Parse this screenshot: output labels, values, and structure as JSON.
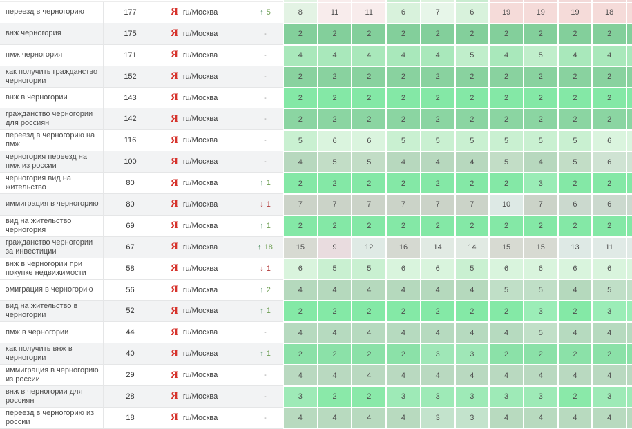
{
  "glyphs": {
    "up": "↑",
    "down": "↓",
    "none": "-"
  },
  "colors": {
    "yandex_red": "#d6322b",
    "change_up_arrow": "#2e7b47",
    "change_up_value": "#6f9f53",
    "change_down": "#b23b3b",
    "dash_gray": "#999999",
    "zebra_row": "#f2f3f4"
  },
  "table": {
    "engine": {
      "icon": "Я",
      "label": "ru/Москва"
    },
    "clipped_row": {
      "colors": [
        "#e3f3e4",
        "#f8ecec",
        "#f8ecec",
        "#c9ecd0",
        "#ddf2de",
        "#c9ecd0",
        "#f2d9d8",
        "#f2d9d8",
        "#f2d9d8",
        "#f2d9d8"
      ]
    },
    "rows": [
      {
        "keyword": "переезд в черногорию",
        "volume": "177",
        "zebra": false,
        "change": {
          "dir": "up",
          "value": "5"
        },
        "positions": [
          {
            "v": "8",
            "c": "#e3f3e4"
          },
          {
            "v": "11",
            "c": "#f8ecec"
          },
          {
            "v": "11",
            "c": "#f8ecec"
          },
          {
            "v": "6",
            "c": "#d8f2dc"
          },
          {
            "v": "7",
            "c": "#e7f6e9"
          },
          {
            "v": "6",
            "c": "#d8f2dc"
          },
          {
            "v": "19",
            "c": "#f5dbd9"
          },
          {
            "v": "19",
            "c": "#f5dbd9"
          },
          {
            "v": "19",
            "c": "#f5dbd9"
          },
          {
            "v": "18",
            "c": "#f5dbd9"
          }
        ]
      },
      {
        "keyword": "внж черногория",
        "volume": "175",
        "zebra": true,
        "change": {
          "dir": "none",
          "value": ""
        },
        "positions": [
          {
            "v": "2",
            "c": "#83cf9b"
          },
          {
            "v": "2",
            "c": "#83cf9b"
          },
          {
            "v": "2",
            "c": "#83cf9b"
          },
          {
            "v": "2",
            "c": "#83cf9b"
          },
          {
            "v": "2",
            "c": "#83cf9b"
          },
          {
            "v": "2",
            "c": "#83cf9b"
          },
          {
            "v": "2",
            "c": "#83cf9b"
          },
          {
            "v": "2",
            "c": "#83cf9b"
          },
          {
            "v": "2",
            "c": "#83cf9b"
          },
          {
            "v": "2",
            "c": "#83cf9b"
          }
        ]
      },
      {
        "keyword": "пмж черногория",
        "volume": "171",
        "zebra": false,
        "change": {
          "dir": "none",
          "value": ""
        },
        "positions": [
          {
            "v": "4",
            "c": "#a9e8bb"
          },
          {
            "v": "4",
            "c": "#a9e8bb"
          },
          {
            "v": "4",
            "c": "#a9e8bb"
          },
          {
            "v": "4",
            "c": "#a9e8bb"
          },
          {
            "v": "4",
            "c": "#a9e8bb"
          },
          {
            "v": "5",
            "c": "#c0eecb"
          },
          {
            "v": "4",
            "c": "#a9e8bb"
          },
          {
            "v": "5",
            "c": "#c0eecb"
          },
          {
            "v": "4",
            "c": "#a9e8bb"
          },
          {
            "v": "4",
            "c": "#a9e8bb"
          }
        ]
      },
      {
        "keyword": "как получить гражданство черногории",
        "volume": "152",
        "zebra": true,
        "change": {
          "dir": "none",
          "value": ""
        },
        "positions": [
          {
            "v": "2",
            "c": "#89d29f"
          },
          {
            "v": "2",
            "c": "#89d29f"
          },
          {
            "v": "2",
            "c": "#89d29f"
          },
          {
            "v": "2",
            "c": "#89d29f"
          },
          {
            "v": "2",
            "c": "#89d29f"
          },
          {
            "v": "2",
            "c": "#89d29f"
          },
          {
            "v": "2",
            "c": "#89d29f"
          },
          {
            "v": "2",
            "c": "#89d29f"
          },
          {
            "v": "2",
            "c": "#89d29f"
          },
          {
            "v": "2",
            "c": "#89d29f"
          }
        ]
      },
      {
        "keyword": "внж в черногории",
        "volume": "143",
        "zebra": false,
        "change": {
          "dir": "none",
          "value": ""
        },
        "positions": [
          {
            "v": "2",
            "c": "#84e8a6"
          },
          {
            "v": "2",
            "c": "#84e8a6"
          },
          {
            "v": "2",
            "c": "#84e8a6"
          },
          {
            "v": "2",
            "c": "#84e8a6"
          },
          {
            "v": "2",
            "c": "#84e8a6"
          },
          {
            "v": "2",
            "c": "#84e8a6"
          },
          {
            "v": "2",
            "c": "#84e8a6"
          },
          {
            "v": "2",
            "c": "#84e8a6"
          },
          {
            "v": "2",
            "c": "#84e8a6"
          },
          {
            "v": "2",
            "c": "#84e8a6"
          }
        ]
      },
      {
        "keyword": "гражданство черногории для россиян",
        "volume": "142",
        "zebra": true,
        "change": {
          "dir": "none",
          "value": ""
        },
        "positions": [
          {
            "v": "2",
            "c": "#8bd5a2"
          },
          {
            "v": "2",
            "c": "#8bd5a2"
          },
          {
            "v": "2",
            "c": "#8bd5a2"
          },
          {
            "v": "2",
            "c": "#8bd5a2"
          },
          {
            "v": "2",
            "c": "#8bd5a2"
          },
          {
            "v": "2",
            "c": "#8bd5a2"
          },
          {
            "v": "2",
            "c": "#8bd5a2"
          },
          {
            "v": "2",
            "c": "#8bd5a2"
          },
          {
            "v": "2",
            "c": "#8bd5a2"
          },
          {
            "v": "2",
            "c": "#8bd5a2"
          }
        ]
      },
      {
        "keyword": "переезд в черногорию на пмж",
        "volume": "116",
        "zebra": false,
        "change": {
          "dir": "none",
          "value": ""
        },
        "positions": [
          {
            "v": "5",
            "c": "#c9f0d1"
          },
          {
            "v": "6",
            "c": "#daf4de"
          },
          {
            "v": "6",
            "c": "#daf4de"
          },
          {
            "v": "5",
            "c": "#c9f0d1"
          },
          {
            "v": "5",
            "c": "#c9f0d1"
          },
          {
            "v": "5",
            "c": "#c9f0d1"
          },
          {
            "v": "5",
            "c": "#c9f0d1"
          },
          {
            "v": "5",
            "c": "#c9f0d1"
          },
          {
            "v": "5",
            "c": "#c9f0d1"
          },
          {
            "v": "6",
            "c": "#daf4de"
          }
        ]
      },
      {
        "keyword": "черногория переезд на пмж из россии",
        "volume": "100",
        "zebra": true,
        "change": {
          "dir": "none",
          "value": ""
        },
        "positions": [
          {
            "v": "4",
            "c": "#b7d8be"
          },
          {
            "v": "5",
            "c": "#c2ddc6"
          },
          {
            "v": "5",
            "c": "#c2ddc6"
          },
          {
            "v": "4",
            "c": "#b7d8be"
          },
          {
            "v": "4",
            "c": "#b7d8be"
          },
          {
            "v": "4",
            "c": "#b7d8be"
          },
          {
            "v": "5",
            "c": "#c2ddc6"
          },
          {
            "v": "4",
            "c": "#b7d8be"
          },
          {
            "v": "5",
            "c": "#c2ddc6"
          },
          {
            "v": "6",
            "c": "#cfe3d3"
          }
        ]
      },
      {
        "keyword": "черногория вид на жительство",
        "volume": "80",
        "zebra": false,
        "change": {
          "dir": "up",
          "value": "1"
        },
        "positions": [
          {
            "v": "2",
            "c": "#84e8a6"
          },
          {
            "v": "2",
            "c": "#84e8a6"
          },
          {
            "v": "2",
            "c": "#84e8a6"
          },
          {
            "v": "2",
            "c": "#84e8a6"
          },
          {
            "v": "2",
            "c": "#84e8a6"
          },
          {
            "v": "2",
            "c": "#84e8a6"
          },
          {
            "v": "2",
            "c": "#84e8a6"
          },
          {
            "v": "3",
            "c": "#9aecb6"
          },
          {
            "v": "2",
            "c": "#84e8a6"
          },
          {
            "v": "2",
            "c": "#84e8a6"
          }
        ]
      },
      {
        "keyword": "иммиграция в черногорию",
        "volume": "80",
        "zebra": true,
        "change": {
          "dir": "down",
          "value": "1"
        },
        "positions": [
          {
            "v": "7",
            "c": "#cbd3c8"
          },
          {
            "v": "7",
            "c": "#cbd3c8"
          },
          {
            "v": "7",
            "c": "#cbd3c8"
          },
          {
            "v": "7",
            "c": "#cbd3c8"
          },
          {
            "v": "7",
            "c": "#cbd3c8"
          },
          {
            "v": "7",
            "c": "#cbd3c8"
          },
          {
            "v": "10",
            "c": "#dde9e5"
          },
          {
            "v": "7",
            "c": "#cbd3c8"
          },
          {
            "v": "6",
            "c": "#cbd9ce"
          },
          {
            "v": "6",
            "c": "#cbd9ce"
          }
        ]
      },
      {
        "keyword": "вид на жительство черногория",
        "volume": "69",
        "zebra": false,
        "change": {
          "dir": "up",
          "value": "1"
        },
        "positions": [
          {
            "v": "2",
            "c": "#84e8a6"
          },
          {
            "v": "2",
            "c": "#84e8a6"
          },
          {
            "v": "2",
            "c": "#84e8a6"
          },
          {
            "v": "2",
            "c": "#84e8a6"
          },
          {
            "v": "2",
            "c": "#84e8a6"
          },
          {
            "v": "2",
            "c": "#84e8a6"
          },
          {
            "v": "2",
            "c": "#84e8a6"
          },
          {
            "v": "2",
            "c": "#84e8a6"
          },
          {
            "v": "2",
            "c": "#84e8a6"
          },
          {
            "v": "2",
            "c": "#84e8a6"
          }
        ]
      },
      {
        "keyword": "гражданство черногории за инвестиции",
        "volume": "67",
        "zebra": true,
        "change": {
          "dir": "up",
          "value": "18"
        },
        "positions": [
          {
            "v": "15",
            "c": "#d7dad2"
          },
          {
            "v": "9",
            "c": "#e9dcdf"
          },
          {
            "v": "12",
            "c": "#dfeae5"
          },
          {
            "v": "16",
            "c": "#d5d9d1"
          },
          {
            "v": "14",
            "c": "#e1eae3"
          },
          {
            "v": "14",
            "c": "#e1eae3"
          },
          {
            "v": "15",
            "c": "#d7dad2"
          },
          {
            "v": "15",
            "c": "#d7dad2"
          },
          {
            "v": "13",
            "c": "#dee9e5"
          },
          {
            "v": "11",
            "c": "#e0eae6"
          }
        ]
      },
      {
        "keyword": "внж в черногории при покупке недвижимости",
        "volume": "58",
        "zebra": false,
        "change": {
          "dir": "down",
          "value": "1"
        },
        "positions": [
          {
            "v": "6",
            "c": "#d9f4dd"
          },
          {
            "v": "5",
            "c": "#c9f0d1"
          },
          {
            "v": "5",
            "c": "#c9f0d1"
          },
          {
            "v": "6",
            "c": "#d9f4dd"
          },
          {
            "v": "6",
            "c": "#d9f4dd"
          },
          {
            "v": "5",
            "c": "#c9f0d1"
          },
          {
            "v": "6",
            "c": "#d9f4dd"
          },
          {
            "v": "6",
            "c": "#d9f4dd"
          },
          {
            "v": "6",
            "c": "#d9f4dd"
          },
          {
            "v": "6",
            "c": "#d9f4dd"
          }
        ]
      },
      {
        "keyword": "эмиграция в черногорию",
        "volume": "56",
        "zebra": false,
        "change": {
          "dir": "up",
          "value": "2"
        },
        "positions": [
          {
            "v": "4",
            "c": "#b5d9bd"
          },
          {
            "v": "4",
            "c": "#b5d9bd"
          },
          {
            "v": "4",
            "c": "#b5d9bd"
          },
          {
            "v": "4",
            "c": "#b5d9bd"
          },
          {
            "v": "4",
            "c": "#b5d9bd"
          },
          {
            "v": "4",
            "c": "#b5d9bd"
          },
          {
            "v": "5",
            "c": "#c0dfc7"
          },
          {
            "v": "5",
            "c": "#c0dfc7"
          },
          {
            "v": "4",
            "c": "#b5d9bd"
          },
          {
            "v": "5",
            "c": "#c0dfc7"
          }
        ]
      },
      {
        "keyword": "вид на жительство в черногории",
        "volume": "52",
        "zebra": true,
        "change": {
          "dir": "up",
          "value": "1"
        },
        "positions": [
          {
            "v": "2",
            "c": "#84e9a6"
          },
          {
            "v": "2",
            "c": "#84e9a6"
          },
          {
            "v": "2",
            "c": "#84e9a6"
          },
          {
            "v": "2",
            "c": "#84e9a6"
          },
          {
            "v": "2",
            "c": "#84e9a6"
          },
          {
            "v": "2",
            "c": "#84e9a6"
          },
          {
            "v": "2",
            "c": "#84e9a6"
          },
          {
            "v": "3",
            "c": "#9bedb7"
          },
          {
            "v": "2",
            "c": "#84e9a6"
          },
          {
            "v": "3",
            "c": "#9bedb7"
          }
        ]
      },
      {
        "keyword": "пмж в черногории",
        "volume": "44",
        "zebra": false,
        "change": {
          "dir": "none",
          "value": ""
        },
        "positions": [
          {
            "v": "4",
            "c": "#b6dabf"
          },
          {
            "v": "4",
            "c": "#b6dabf"
          },
          {
            "v": "4",
            "c": "#b6dabf"
          },
          {
            "v": "4",
            "c": "#b6dabf"
          },
          {
            "v": "4",
            "c": "#b6dabf"
          },
          {
            "v": "4",
            "c": "#b6dabf"
          },
          {
            "v": "4",
            "c": "#b6dabf"
          },
          {
            "v": "5",
            "c": "#c1e0c8"
          },
          {
            "v": "4",
            "c": "#b6dabf"
          },
          {
            "v": "4",
            "c": "#b6dabf"
          }
        ]
      },
      {
        "keyword": "как получить внж в черногории",
        "volume": "40",
        "zebra": true,
        "change": {
          "dir": "up",
          "value": "1"
        },
        "positions": [
          {
            "v": "2",
            "c": "#8be1a8"
          },
          {
            "v": "2",
            "c": "#8be1a8"
          },
          {
            "v": "2",
            "c": "#8be1a8"
          },
          {
            "v": "2",
            "c": "#8be1a8"
          },
          {
            "v": "3",
            "c": "#9fe7b7"
          },
          {
            "v": "3",
            "c": "#9fe7b7"
          },
          {
            "v": "2",
            "c": "#8be1a8"
          },
          {
            "v": "2",
            "c": "#8be1a8"
          },
          {
            "v": "2",
            "c": "#8be1a8"
          },
          {
            "v": "2",
            "c": "#8be1a8"
          }
        ]
      },
      {
        "keyword": "иммиграция в черногорию из россии",
        "volume": "29",
        "zebra": false,
        "change": {
          "dir": "none",
          "value": ""
        },
        "positions": [
          {
            "v": "4",
            "c": "#b9d9c0"
          },
          {
            "v": "4",
            "c": "#b9d9c0"
          },
          {
            "v": "4",
            "c": "#b9d9c0"
          },
          {
            "v": "4",
            "c": "#b9d9c0"
          },
          {
            "v": "4",
            "c": "#b9d9c0"
          },
          {
            "v": "4",
            "c": "#b9d9c0"
          },
          {
            "v": "4",
            "c": "#b9d9c0"
          },
          {
            "v": "4",
            "c": "#b9d9c0"
          },
          {
            "v": "4",
            "c": "#b9d9c0"
          },
          {
            "v": "4",
            "c": "#b9d9c0"
          }
        ]
      },
      {
        "keyword": "внж в черногории для россиян",
        "volume": "28",
        "zebra": true,
        "change": {
          "dir": "none",
          "value": ""
        },
        "positions": [
          {
            "v": "3",
            "c": "#9eeab7"
          },
          {
            "v": "2",
            "c": "#8ae9a9"
          },
          {
            "v": "2",
            "c": "#8ae9a9"
          },
          {
            "v": "3",
            "c": "#9eeab7"
          },
          {
            "v": "3",
            "c": "#9eeab7"
          },
          {
            "v": "3",
            "c": "#9eeab7"
          },
          {
            "v": "3",
            "c": "#9eeab7"
          },
          {
            "v": "3",
            "c": "#9eeab7"
          },
          {
            "v": "2",
            "c": "#8ae9a9"
          },
          {
            "v": "3",
            "c": "#9eeab7"
          }
        ]
      },
      {
        "keyword": "переезд в черногорию из россии",
        "volume": "18",
        "zebra": false,
        "change": {
          "dir": "none",
          "value": ""
        },
        "positions": [
          {
            "v": "4",
            "c": "#b8dabf"
          },
          {
            "v": "4",
            "c": "#b8dabf"
          },
          {
            "v": "4",
            "c": "#b8dabf"
          },
          {
            "v": "4",
            "c": "#b8dabf"
          },
          {
            "v": "3",
            "c": "#c3e3cc"
          },
          {
            "v": "3",
            "c": "#c3e3cc"
          },
          {
            "v": "4",
            "c": "#b8dabf"
          },
          {
            "v": "4",
            "c": "#b8dabf"
          },
          {
            "v": "4",
            "c": "#b8dabf"
          },
          {
            "v": "4",
            "c": "#b8dabf"
          }
        ]
      }
    ]
  }
}
